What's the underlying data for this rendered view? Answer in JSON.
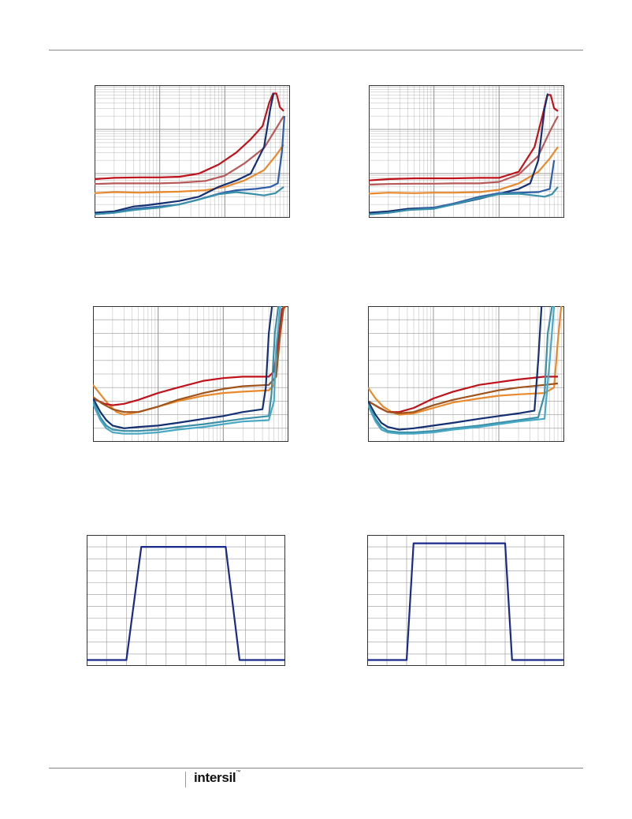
{
  "colors": {
    "red": "#c0121a",
    "rose": "#b85a5a",
    "brown": "#a0541c",
    "orange": "#e8892e",
    "navy": "#142f72",
    "blue": "#2e5fa8",
    "teal": "#3a8fa8",
    "cyan": "#4aa8c4",
    "pulse": "#1a2a8a",
    "grid": "#999999"
  },
  "footer": {
    "logo_text": "intersil",
    "trademark": "™"
  },
  "chart_data": [
    {
      "type": "line",
      "ylog": true,
      "xlog": true,
      "xlim": [
        1,
        1000
      ],
      "ylim": [
        1,
        1000
      ],
      "series": [
        {
          "color": "red",
          "x": [
            1,
            2,
            5,
            10,
            20,
            40,
            80,
            150,
            250,
            380,
            480,
            550,
            620,
            700,
            800
          ],
          "y": [
            7.5,
            8,
            8.2,
            8.2,
            8.5,
            10,
            16,
            30,
            60,
            120,
            400,
            650,
            650,
            320,
            260
          ]
        },
        {
          "color": "rose",
          "x": [
            1,
            2,
            5,
            10,
            20,
            50,
            100,
            200,
            400,
            600,
            800
          ],
          "y": [
            5.8,
            6,
            6,
            6,
            6.2,
            6.8,
            9,
            17,
            38,
            100,
            200
          ]
        },
        {
          "color": "orange",
          "x": [
            1,
            2,
            5,
            10,
            20,
            50,
            100,
            200,
            400,
            600,
            800
          ],
          "y": [
            3.6,
            3.8,
            3.7,
            3.8,
            3.9,
            4.2,
            5,
            7,
            12,
            25,
            45
          ]
        },
        {
          "color": "navy",
          "x": [
            1,
            2,
            4,
            6,
            10,
            20,
            40,
            80,
            150,
            250,
            400,
            500,
            560
          ],
          "y": [
            1.3,
            1.4,
            1.8,
            1.9,
            2.1,
            2.4,
            3,
            5,
            7,
            10,
            40,
            300,
            650
          ]
        },
        {
          "color": "blue",
          "x": [
            1,
            2,
            4,
            10,
            20,
            40,
            80,
            150,
            300,
            500,
            650,
            750,
            820
          ],
          "y": [
            1.2,
            1.3,
            1.6,
            1.8,
            2,
            2.6,
            3.5,
            4.2,
            4.5,
            5,
            6,
            30,
            200
          ]
        },
        {
          "color": "teal",
          "x": [
            1,
            2,
            4,
            10,
            20,
            40,
            80,
            150,
            250,
            400,
            600,
            800
          ],
          "y": [
            1.2,
            1.3,
            1.5,
            1.7,
            2,
            2.6,
            3.4,
            3.8,
            3.5,
            3.2,
            3.6,
            5
          ]
        }
      ]
    },
    {
      "type": "line",
      "ylog": true,
      "xlog": true,
      "xlim": [
        1,
        1000
      ],
      "ylim": [
        1,
        1000
      ],
      "series": [
        {
          "color": "red",
          "x": [
            1,
            2,
            5,
            10,
            20,
            50,
            100,
            200,
            350,
            480,
            550,
            620,
            700,
            800
          ],
          "y": [
            7,
            7.5,
            7.8,
            7.8,
            7.8,
            8,
            8,
            11,
            40,
            250,
            600,
            600,
            300,
            260
          ]
        },
        {
          "color": "rose",
          "x": [
            1,
            2,
            5,
            10,
            20,
            50,
            100,
            200,
            400,
            600,
            800
          ],
          "y": [
            5.6,
            5.8,
            5.9,
            5.9,
            6,
            6,
            6.5,
            9.5,
            25,
            90,
            200
          ]
        },
        {
          "color": "orange",
          "x": [
            1,
            2,
            5,
            10,
            20,
            50,
            100,
            200,
            400,
            600,
            800
          ],
          "y": [
            3.5,
            3.7,
            3.6,
            3.7,
            3.7,
            3.8,
            4.3,
            6,
            11,
            22,
            40
          ]
        },
        {
          "color": "navy",
          "x": [
            1,
            2,
            4,
            10,
            20,
            50,
            100,
            200,
            300,
            400,
            500,
            560
          ],
          "y": [
            1.3,
            1.4,
            1.6,
            1.7,
            2,
            2.7,
            3.5,
            4.5,
            6,
            20,
            300,
            650
          ]
        },
        {
          "color": "blue",
          "x": [
            1,
            2,
            4,
            10,
            20,
            50,
            100,
            200,
            400,
            600,
            700
          ],
          "y": [
            1.2,
            1.3,
            1.5,
            1.7,
            2.1,
            3,
            3.6,
            3.7,
            3.8,
            4.5,
            20
          ]
        },
        {
          "color": "teal",
          "x": [
            1,
            2,
            4,
            10,
            20,
            50,
            100,
            200,
            350,
            500,
            650,
            800
          ],
          "y": [
            1.2,
            1.3,
            1.5,
            1.6,
            2,
            2.8,
            3.4,
            3.5,
            3.2,
            3,
            3.4,
            5
          ]
        }
      ]
    },
    {
      "type": "line",
      "ylog": false,
      "xlog": true,
      "xlim": [
        1,
        1000
      ],
      "ylim": [
        0,
        100
      ],
      "series": [
        {
          "color": "orange",
          "x": [
            1,
            1.3,
            1.7,
            2.3,
            3,
            5,
            10,
            20,
            50,
            100,
            200,
            500,
            600,
            700,
            800,
            900
          ],
          "y": [
            42,
            35,
            28,
            22,
            20,
            22,
            26,
            30,
            34,
            36,
            37,
            38,
            42,
            70,
            96,
            100
          ]
        },
        {
          "color": "red",
          "x": [
            1,
            1.5,
            2,
            3,
            5,
            10,
            20,
            50,
            100,
            200,
            500,
            600,
            700,
            800,
            900
          ],
          "y": [
            32,
            28,
            27,
            28,
            31,
            36,
            40,
            45,
            47,
            48,
            48,
            52,
            75,
            98,
            100
          ]
        },
        {
          "color": "brown",
          "x": [
            1,
            1.4,
            2,
            3,
            5,
            10,
            20,
            50,
            100,
            200,
            500,
            650,
            750,
            850
          ],
          "y": [
            33,
            28,
            24,
            22,
            22,
            26,
            31,
            36,
            39,
            41,
            42,
            48,
            80,
            100
          ]
        },
        {
          "color": "navy",
          "x": [
            1,
            1.3,
            1.6,
            2,
            3,
            5,
            10,
            20,
            50,
            100,
            200,
            400,
            450,
            500,
            560
          ],
          "y": [
            32,
            22,
            16,
            12,
            10,
            11,
            12,
            14,
            17,
            19,
            22,
            24,
            40,
            80,
            100
          ]
        },
        {
          "color": "teal",
          "x": [
            1,
            1.3,
            1.6,
            2,
            3,
            5,
            10,
            20,
            50,
            100,
            200,
            500,
            550,
            620,
            700
          ],
          "y": [
            30,
            18,
            12,
            9,
            8,
            8,
            9,
            11,
            13,
            15,
            17,
            19,
            35,
            80,
            100
          ]
        },
        {
          "color": "cyan",
          "x": [
            1,
            1.3,
            1.6,
            2,
            3,
            5,
            10,
            20,
            50,
            100,
            200,
            500,
            600,
            650,
            750
          ],
          "y": [
            28,
            16,
            10,
            7,
            6,
            6,
            7,
            9,
            11,
            13,
            15,
            16,
            30,
            70,
            100
          ]
        }
      ]
    },
    {
      "type": "line",
      "ylog": false,
      "xlog": true,
      "xlim": [
        1,
        1000
      ],
      "ylim": [
        0,
        100
      ],
      "series": [
        {
          "color": "orange",
          "x": [
            1,
            1.3,
            1.7,
            2.3,
            3,
            5,
            10,
            20,
            50,
            100,
            200,
            500,
            700,
            800,
            900
          ],
          "y": [
            40,
            32,
            26,
            22,
            20,
            21,
            25,
            29,
            32,
            34,
            35,
            36,
            40,
            75,
            100
          ]
        },
        {
          "color": "red",
          "x": [
            1,
            1.5,
            2,
            3,
            5,
            10,
            20,
            50,
            100,
            200,
            500,
            800
          ],
          "y": [
            30,
            25,
            22,
            22,
            25,
            32,
            37,
            42,
            44,
            46,
            48,
            48
          ]
        },
        {
          "color": "brown",
          "x": [
            1,
            1.4,
            2,
            3,
            5,
            10,
            20,
            50,
            100,
            200,
            500,
            800
          ],
          "y": [
            30,
            26,
            22,
            21,
            22,
            27,
            31,
            35,
            38,
            40,
            42,
            43
          ]
        },
        {
          "color": "navy",
          "x": [
            1,
            1.3,
            1.6,
            2,
            3,
            5,
            10,
            20,
            50,
            100,
            200,
            350,
            400,
            450
          ],
          "y": [
            30,
            20,
            14,
            11,
            9,
            10,
            12,
            14,
            17,
            19,
            21,
            23,
            60,
            100
          ]
        },
        {
          "color": "teal",
          "x": [
            1,
            1.3,
            1.6,
            2,
            3,
            5,
            10,
            20,
            50,
            100,
            200,
            400,
            500,
            560,
            650
          ],
          "y": [
            28,
            17,
            11,
            8,
            7,
            7,
            8,
            10,
            12,
            14,
            16,
            18,
            35,
            80,
            100
          ]
        },
        {
          "color": "cyan",
          "x": [
            1,
            1.3,
            1.6,
            2,
            3,
            5,
            10,
            20,
            50,
            100,
            200,
            500,
            600,
            700
          ],
          "y": [
            27,
            15,
            9,
            7,
            6,
            6,
            7,
            9,
            11,
            13,
            15,
            17,
            60,
            100
          ]
        }
      ]
    },
    {
      "type": "line",
      "ylog": false,
      "xlog": false,
      "xlim": [
        0,
        10
      ],
      "ylim": [
        0,
        11
      ],
      "series": [
        {
          "color": "pulse",
          "x": [
            0,
            2,
            2.75,
            7,
            7.7,
            10
          ],
          "y": [
            0.5,
            0.5,
            10,
            10,
            0.5,
            0.5
          ]
        }
      ]
    },
    {
      "type": "line",
      "ylog": false,
      "xlog": false,
      "xlim": [
        0,
        10
      ],
      "ylim": [
        0,
        11
      ],
      "series": [
        {
          "color": "pulse",
          "x": [
            0,
            2,
            2.35,
            7,
            7.35,
            10
          ],
          "y": [
            0.5,
            0.5,
            10.3,
            10.3,
            0.5,
            0.5
          ]
        }
      ]
    }
  ]
}
